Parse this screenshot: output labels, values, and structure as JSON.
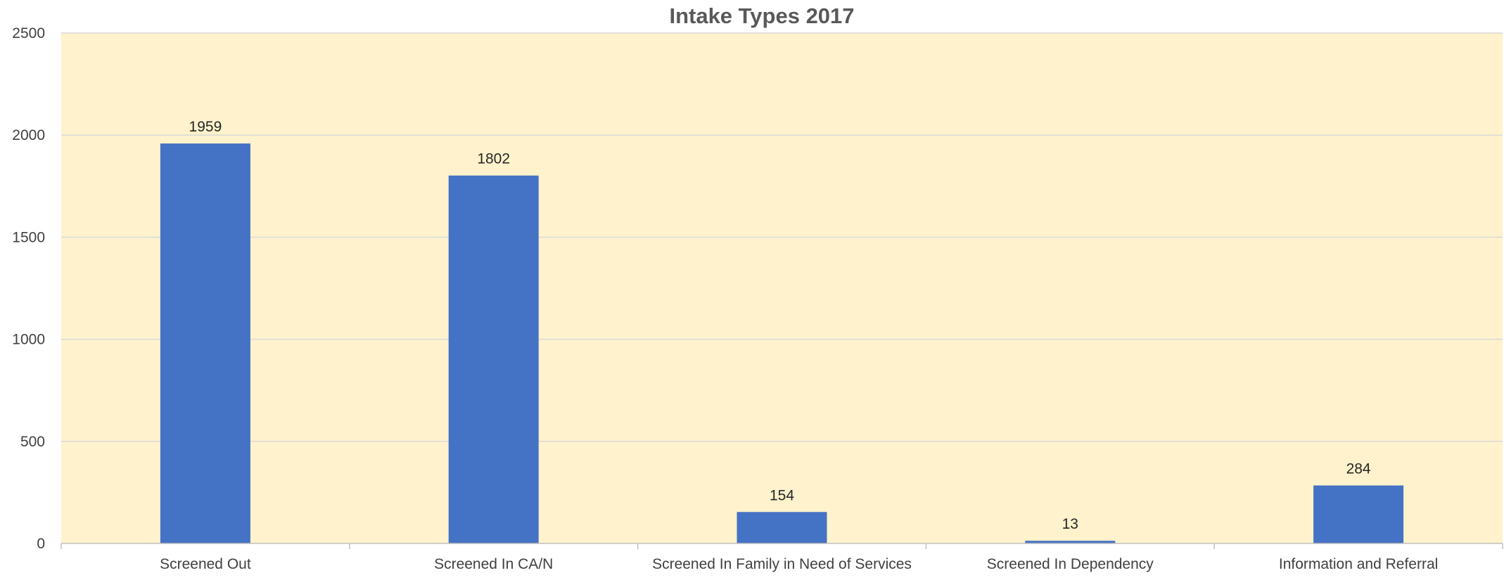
{
  "chart_data": {
    "type": "bar",
    "title": "Intake Types 2017",
    "xlabel": "",
    "ylabel": "",
    "categories": [
      "Screened Out",
      "Screened In CA/N",
      "Screened In Family in Need of Services",
      "Screened In Dependency",
      "Information and Referral"
    ],
    "values": [
      1959,
      1802,
      154,
      13,
      284
    ],
    "ylim": [
      0,
      2500
    ],
    "yticks": [
      0,
      500,
      1000,
      1500,
      2000,
      2500
    ],
    "data_labels": true,
    "grid": true,
    "legend": "none",
    "colors": {
      "bar": "#4472C4",
      "plot_background": "#FFF2CC",
      "gridline": "#D9D9D9",
      "axis": "#BFBFBF"
    }
  }
}
